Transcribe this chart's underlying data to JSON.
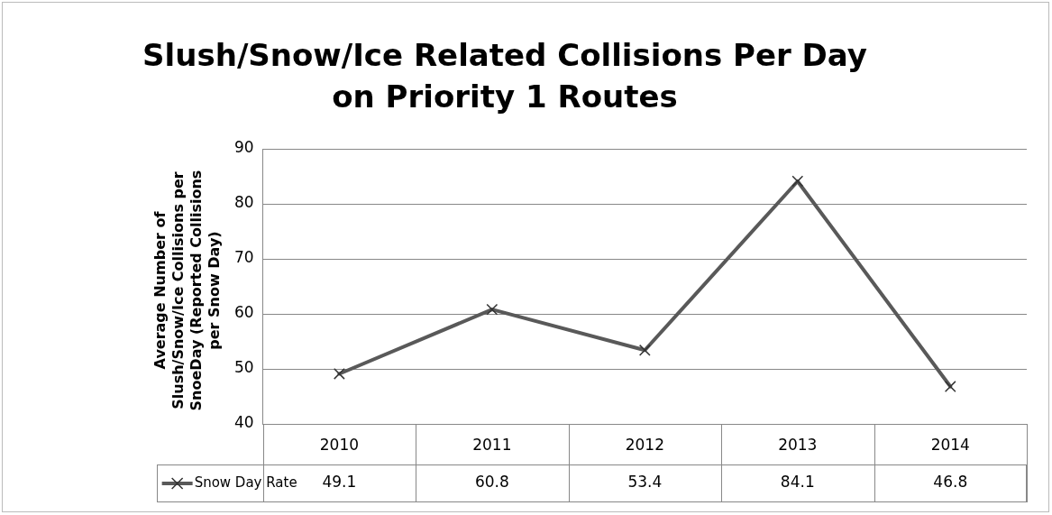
{
  "chart_data": {
    "type": "line",
    "title": "Slush/Snow/Ice Related Collisions Per Day on Priority 1 Routes",
    "ylabel": "Average Number of Slush/Snow/Ice Collisions per SnoeDay (Reported Collisions per Snow Day)",
    "categories": [
      "2010",
      "2011",
      "2012",
      "2013",
      "2014"
    ],
    "series": [
      {
        "name": "Snow Day Rate",
        "color": "#595959",
        "values": [
          49.1,
          60.8,
          53.4,
          84.1,
          46.8
        ]
      }
    ],
    "ylim": [
      40,
      90
    ],
    "yticks": [
      40,
      50,
      60,
      70,
      80,
      90
    ],
    "grid": "y",
    "legend": "bottom left",
    "marker": "cross",
    "line_style": "solid",
    "data_labels": true
  }
}
